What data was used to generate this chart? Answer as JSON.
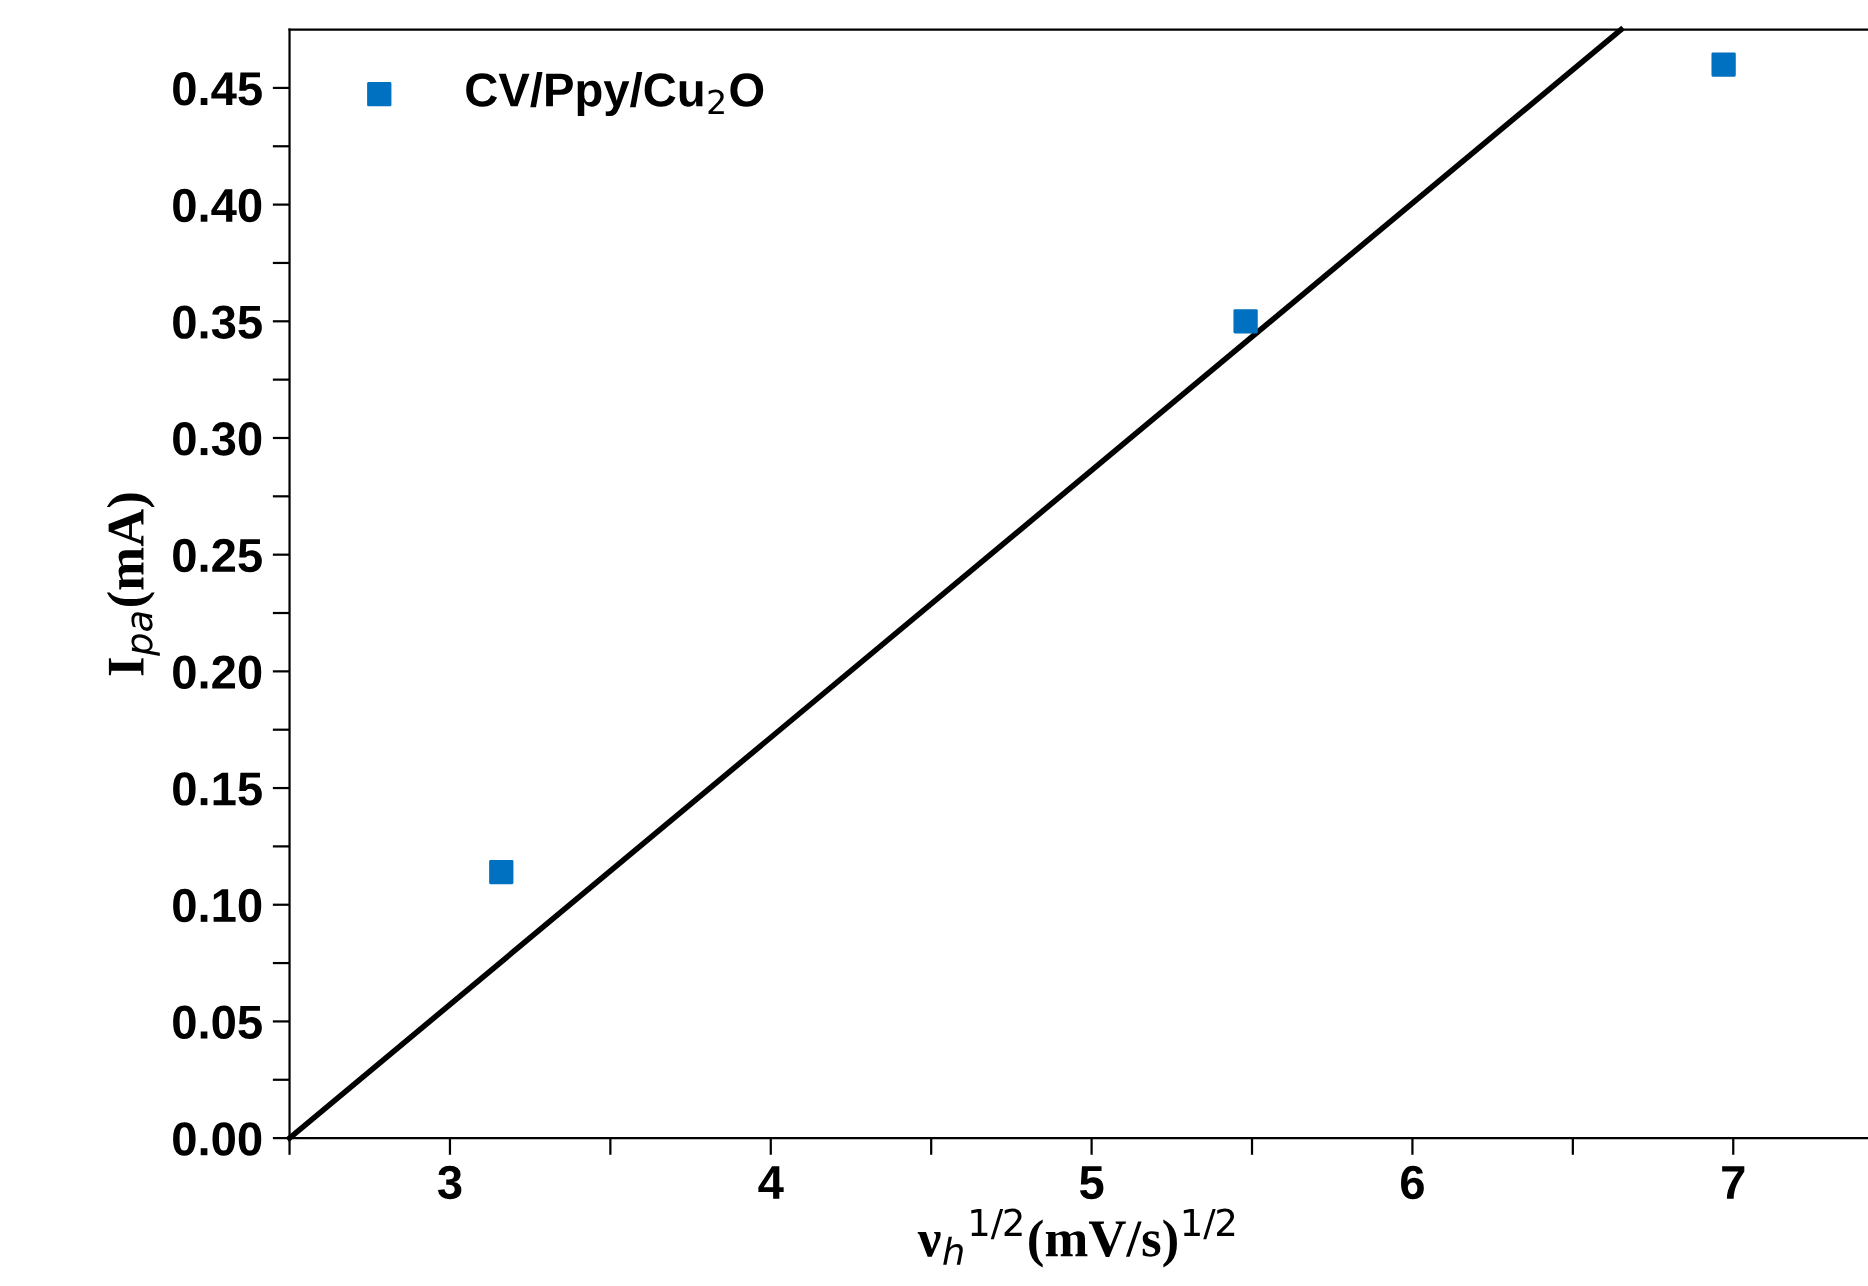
{
  "chart_data": {
    "type": "scatter",
    "xlabel": "ν$_{h}$$^{1/2}$(mV/s)$^{1/2}$",
    "ylabel": "I$_{pa}$(mA)",
    "series": [
      {
        "name": "CV/Ppy/Cu$_{2}$O",
        "color": "#0070c0",
        "x": [
          3.16,
          5.48,
          6.97
        ],
        "values": [
          0.114,
          0.35,
          0.46
        ],
        "marker": "square"
      },
      {
        "type": "line",
        "color": "#000000",
        "x": [
          2.5,
          6.65
        ],
        "values": [
          0,
          0.475
        ],
        "line_style": "solid",
        "marker": "none"
      }
    ],
    "xlim": [
      2.5,
      7.42
    ],
    "ylim": [
      0,
      0.475
    ],
    "xticks": [
      {
        "value": 2.5,
        "label": null
      },
      3,
      {
        "value": 3.5,
        "label": null
      },
      4,
      {
        "value": 4.5,
        "label": null
      },
      5,
      {
        "value": 5.5,
        "label": null
      },
      6,
      {
        "value": 6.5,
        "label": null
      },
      7
    ],
    "yticks": [
      {
        "value": 0,
        "label": "0.00"
      },
      {
        "value": 0.025,
        "label": null
      },
      {
        "value": 0.05,
        "label": "0.05"
      },
      {
        "value": 0.075,
        "label": null
      },
      {
        "value": 0.1,
        "label": "0.10"
      },
      {
        "value": 0.125,
        "label": null
      },
      {
        "value": 0.15,
        "label": "0.15"
      },
      {
        "value": 0.175,
        "label": null
      },
      {
        "value": 0.2,
        "label": "0.20"
      },
      {
        "value": 0.225,
        "label": null
      },
      {
        "value": 0.25,
        "label": "0.25"
      },
      {
        "value": 0.275,
        "label": null
      },
      {
        "value": 0.3,
        "label": "0.30"
      },
      {
        "value": 0.325,
        "label": null
      },
      {
        "value": 0.35,
        "label": "0.35"
      },
      {
        "value": 0.375,
        "label": null
      },
      {
        "value": 0.4,
        "label": "0.40"
      },
      {
        "value": 0.425,
        "label": null
      },
      {
        "value": 0.45,
        "label": "0.45"
      }
    ],
    "grid": false,
    "legend": "top left"
  }
}
